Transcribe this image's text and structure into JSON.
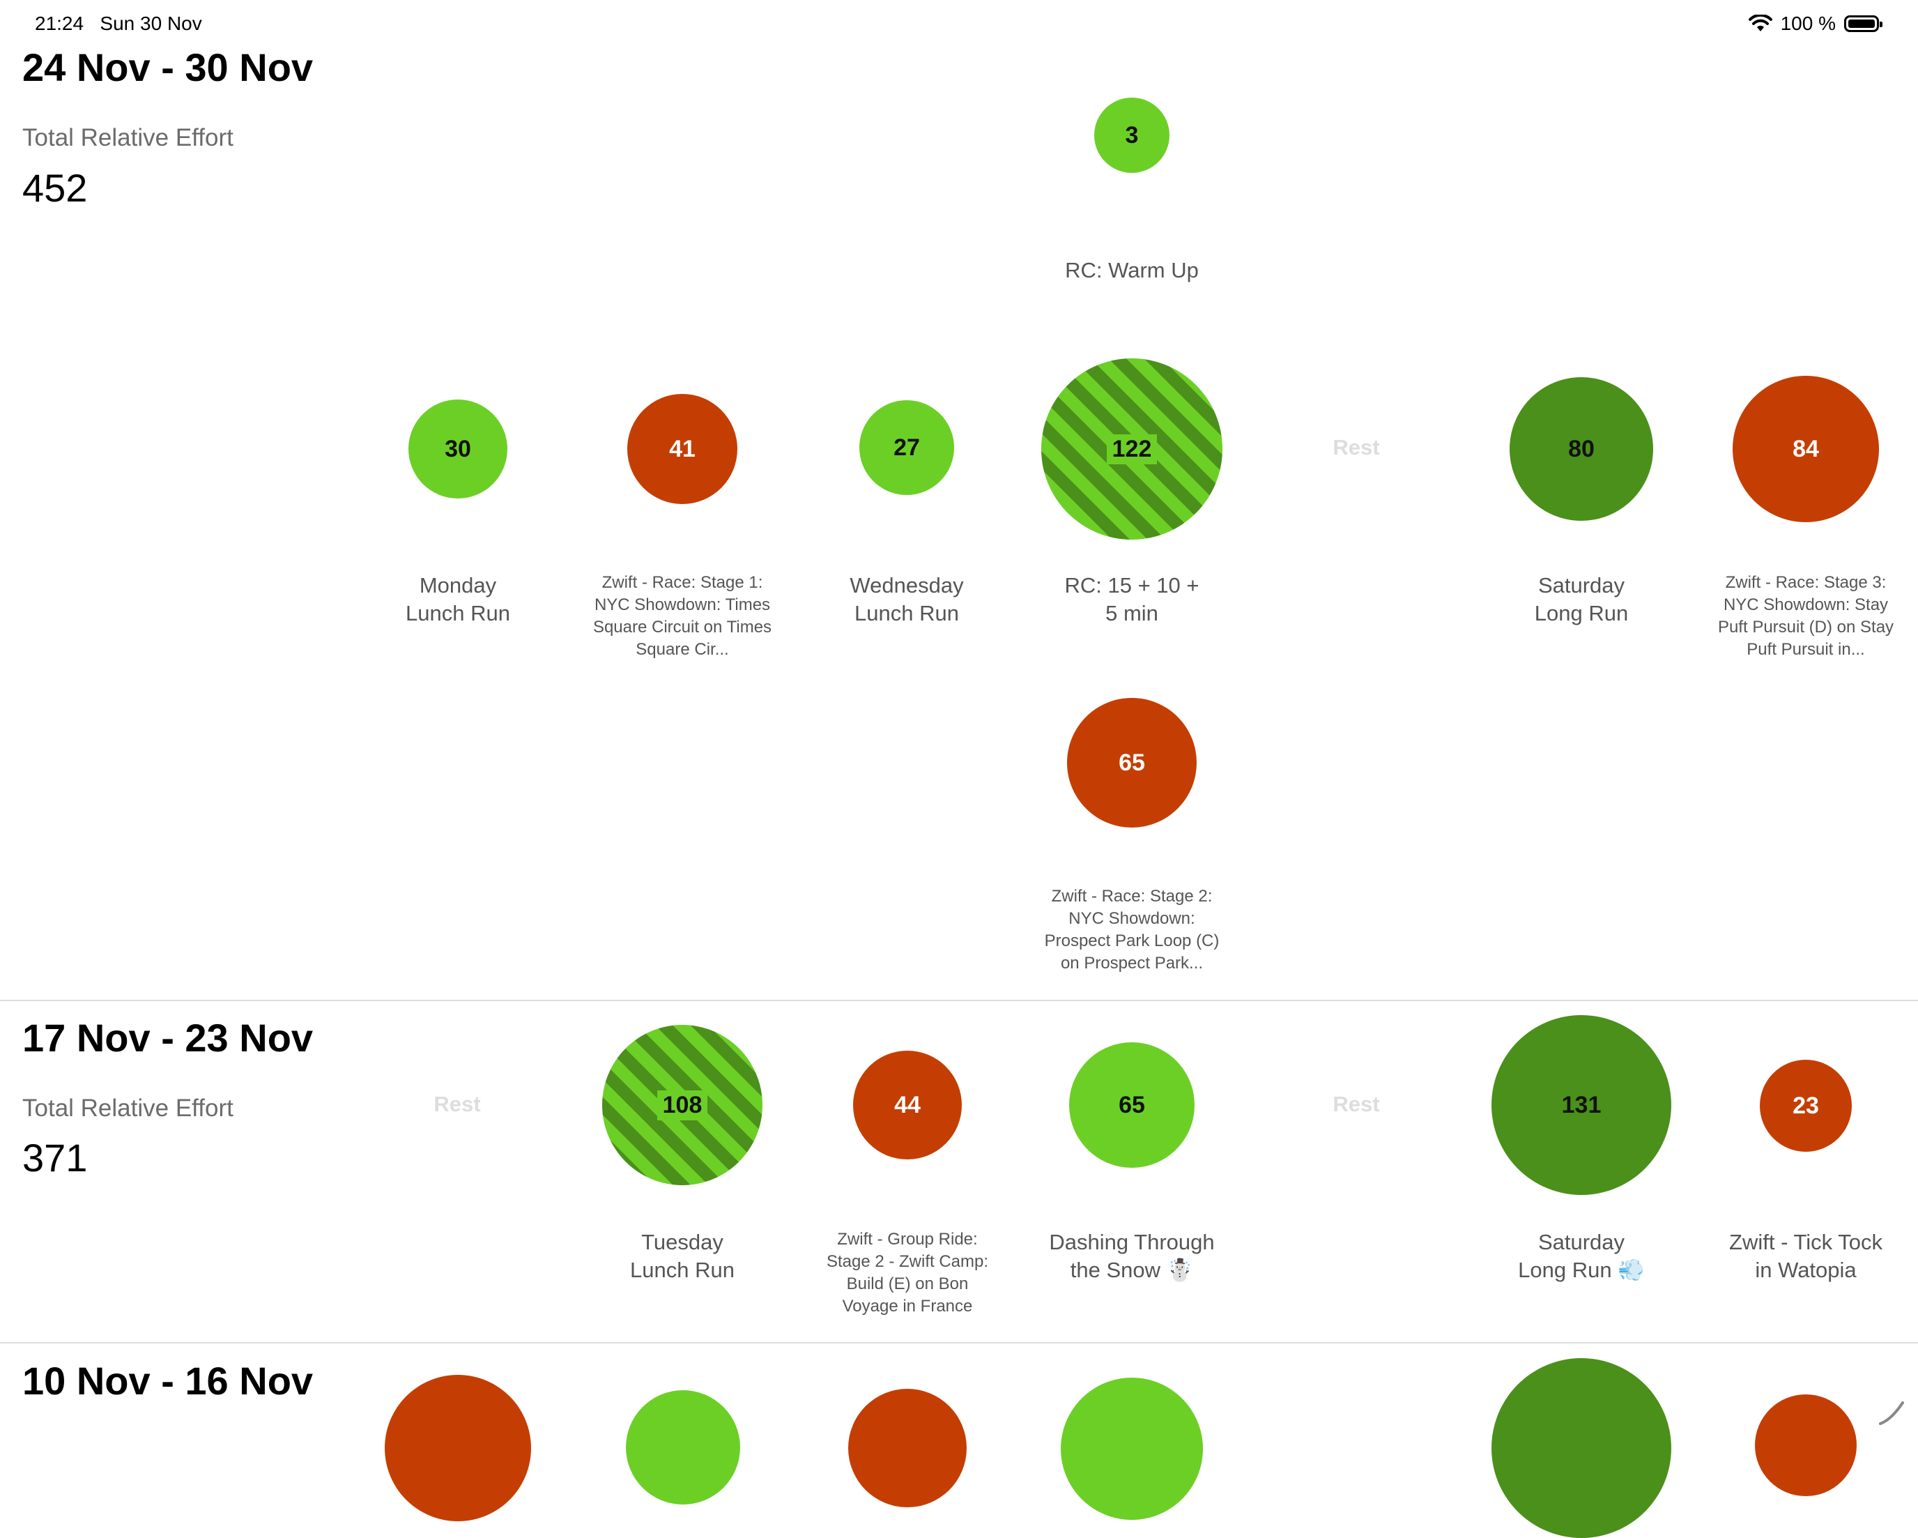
{
  "status_bar": {
    "time": "21:24",
    "date": "Sun 30 Nov",
    "battery": "100 %"
  },
  "weeks": [
    {
      "title": "24 Nov - 30 Nov",
      "effort_label": "Total Relative Effort",
      "effort_value": "452",
      "activities": [
        {
          "value": "3",
          "label": "RC: Warm Up",
          "color": "#6ccf26"
        },
        {
          "value": "30",
          "label": "Monday\nLunch Run",
          "color": "#6ccf26"
        },
        {
          "value": "41",
          "label": "Zwift - Race: Stage 1: NYC Showdown: Times Square Circuit on Times Square Cir...",
          "color": "#c43e03"
        },
        {
          "value": "27",
          "label": "Wednesday\nLunch Run",
          "color": "#6ccf26"
        },
        {
          "value": "122",
          "label": "RC: 15 + 10 +\n5 min",
          "color": "#4a901a"
        },
        {
          "value": "80",
          "label": "Saturday\nLong Run",
          "color": "#4a901a"
        },
        {
          "value": "84",
          "label": "Zwift - Race: Stage 3: NYC Showdown: Stay Puft Pursuit (D) on Stay Puft Pursuit in...",
          "color": "#c43e03"
        },
        {
          "value": "65",
          "label": "Zwift - Race: Stage 2: NYC Showdown: Prospect Park Loop (C) on Prospect Park...",
          "color": "#c43e03"
        }
      ],
      "rest_labels": [
        "Rest"
      ]
    },
    {
      "title": "17 Nov - 23 Nov",
      "effort_label": "Total Relative Effort",
      "effort_value": "371",
      "activities": [
        {
          "value": "108",
          "label": "Tuesday\nLunch Run",
          "color": "#4a901a"
        },
        {
          "value": "44",
          "label": "Zwift - Group Ride: Stage 2 - Zwift Camp: Build (E) on Bon Voyage in France",
          "color": "#c43e03"
        },
        {
          "value": "65",
          "label": "Dashing Through\nthe Snow ☃️",
          "color": "#6ccf26"
        },
        {
          "value": "131",
          "label": "Saturday\nLong Run 💨",
          "color": "#4a901a"
        },
        {
          "value": "23",
          "label": "Zwift - Tick Tock\nin Watopia",
          "color": "#c43e03"
        }
      ],
      "rest_labels": [
        "Rest",
        "Rest"
      ]
    },
    {
      "title": "10 Nov - 16 Nov"
    }
  ]
}
